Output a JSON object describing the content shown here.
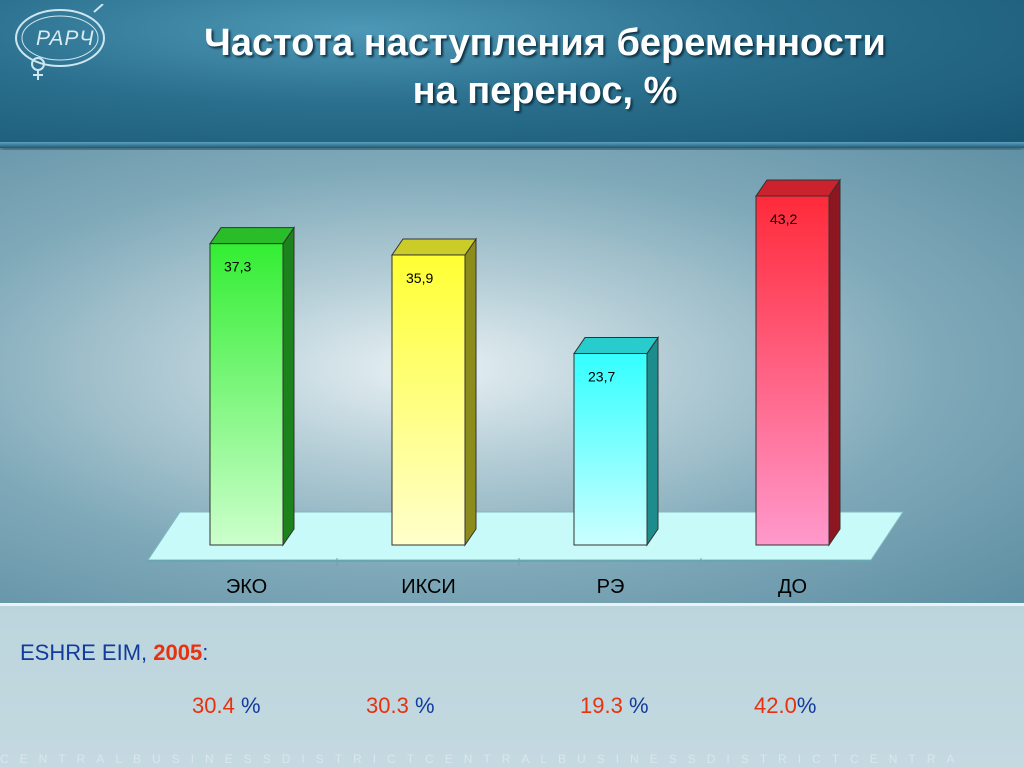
{
  "header": {
    "title_line1": "Частота наступления беременности",
    "title_line2": "на перенос, %",
    "logo_text": "РАРЧ"
  },
  "chart_data": {
    "type": "bar",
    "categories": [
      "ЭКО",
      "ИКСИ",
      "РЭ",
      "ДО"
    ],
    "values": [
      37.3,
      35.9,
      23.7,
      43.2
    ],
    "data_labels": [
      "37,3",
      "35,9",
      "23,7",
      "43,2"
    ],
    "colors": [
      "#33ee33",
      "#ffff33",
      "#33ffff",
      "#ff2a3a"
    ],
    "ylim": [
      0,
      45
    ],
    "grid": false,
    "legend": "none"
  },
  "footer": {
    "eshre_label": "ESHRE EIM, ",
    "eshre_year": "2005",
    "eshre_colon": ":",
    "stats": [
      {
        "value": "30.4",
        "unit": " %"
      },
      {
        "value": "30.3",
        "unit": " %"
      },
      {
        "value": "19.3",
        "unit": " %"
      },
      {
        "value": "42.0",
        "unit": "%"
      }
    ]
  },
  "watermark": "CENTRALBUSINESSDISTRICTCENTRALBUSINESSDISTRICTCENTRA",
  "colors": {
    "accent": "#e8310e",
    "text_blue": "#123c9c"
  }
}
